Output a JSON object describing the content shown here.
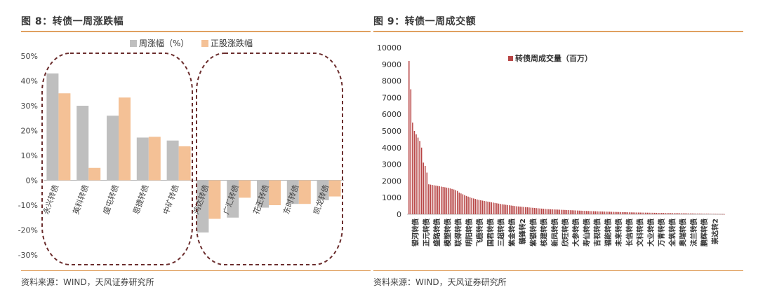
{
  "figures": [
    {
      "title": "图 8：转债一周涨跌幅",
      "source": "资料来源：WIND，天风证券研究所"
    },
    {
      "title": "图 9：转债一周成交额",
      "source": "资料来源：WIND，天风证券研究所"
    }
  ],
  "colors": {
    "rule": "#e0a060",
    "gray_bar": "#bfbfbf",
    "orange_bar": "#f4c196",
    "red_bar": "#b84646",
    "dashed_ellipse": "#6b2d2d"
  },
  "chart_data": [
    {
      "type": "bar",
      "categories": [
        "永兴转债",
        "英科转债",
        "盛屯转债",
        "恩捷转债",
        "中矿转债",
        "鸿达转债",
        "广汇转债",
        "花王转债",
        "东时转债",
        "凯龙转债"
      ],
      "series": [
        {
          "name": "周涨幅（%）",
          "values": [
            43,
            30,
            26,
            17.2,
            16,
            -21,
            -15,
            -11,
            -9.5,
            -8
          ]
        },
        {
          "name": "正股涨跌幅",
          "values": [
            35,
            5,
            33.3,
            17.5,
            13.7,
            -15.5,
            -7,
            -10,
            -9.5,
            -6.5
          ]
        }
      ],
      "y_ticks": [
        "50%",
        "40%",
        "30%",
        "20%",
        "10%",
        "0%",
        "-10%",
        "-20%",
        "-30%"
      ],
      "ylim": [
        -30,
        50
      ],
      "legend": "top-center",
      "grid": false
    },
    {
      "type": "bar",
      "categories_labeled": [
        "银河转债",
        "正元转债",
        "盛路转债",
        "模塑转债",
        "联得转债",
        "明阳转债",
        "飞鹿转债",
        "国君转债",
        "三超转债",
        "紫金转债",
        "赣锋转2",
        "紫银转债",
        "核建转债",
        "新凤转债",
        "欣旺转债",
        "大参转债",
        "寿仙转债",
        "吉视转债",
        "福能转债",
        "未来转债",
        "长信转债",
        "文科转债",
        "大业转债",
        "万青转债",
        "全筑转债",
        "奥瑞转债",
        "法兰转债",
        "鹏辉转债",
        "崇达转2"
      ],
      "series": [
        {
          "name": "转债周成交量（百万）",
          "values": [
            9200,
            7500,
            5500,
            5000,
            4800,
            4600,
            4400,
            4000,
            3100,
            2900,
            2500,
            1800,
            1780,
            1760,
            1740,
            1720,
            1700,
            1680,
            1660,
            1640,
            1620,
            1600,
            1580,
            1550,
            1520,
            1490,
            1450,
            1400,
            1300,
            1250,
            1200,
            1150,
            1100,
            1060,
            1020,
            980,
            950,
            920,
            890,
            860,
            840,
            820,
            800,
            780,
            760,
            740,
            720,
            700,
            680,
            660,
            640,
            620,
            600,
            585,
            570,
            555,
            540,
            525,
            510,
            495,
            480,
            470,
            460,
            450,
            440,
            430,
            420,
            410,
            400,
            390,
            380,
            370,
            360,
            350,
            340,
            330,
            320,
            310,
            305,
            300,
            295,
            290,
            285,
            280,
            275,
            270,
            265,
            260,
            255,
            250,
            245,
            240,
            235,
            230,
            225,
            220,
            215,
            210,
            205,
            200,
            196,
            192,
            188,
            184,
            180,
            176,
            172,
            168,
            164,
            160,
            157,
            154,
            151,
            148,
            145,
            142,
            139,
            136,
            133,
            130,
            127,
            124,
            121,
            118,
            115,
            112,
            110,
            108,
            106,
            104,
            102,
            100,
            98,
            96,
            94,
            92,
            90,
            88,
            86,
            84,
            82,
            80,
            78,
            76,
            74,
            72,
            70,
            68,
            66,
            64,
            62,
            60,
            58,
            56,
            54,
            52,
            50,
            48,
            46,
            44,
            42,
            40,
            38,
            36,
            34,
            32,
            30,
            28,
            26,
            24,
            22,
            20,
            18,
            16,
            14,
            12,
            10
          ]
        }
      ],
      "y_ticks": [
        "10000",
        "9000",
        "8000",
        "7000",
        "6000",
        "5000",
        "4000",
        "3000",
        "2000",
        "1000",
        "0"
      ],
      "ylim": [
        0,
        10000
      ],
      "legend": "top-left-inside",
      "grid": false
    }
  ]
}
